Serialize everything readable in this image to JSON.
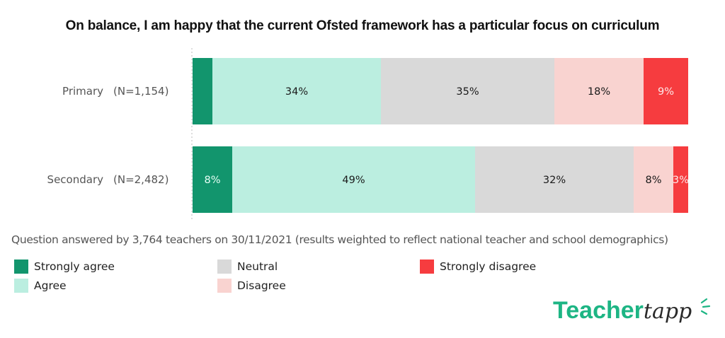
{
  "chart_data": {
    "type": "bar",
    "orientation": "horizontal",
    "stacked": true,
    "title": "On balance, I am happy that the current Ofsted framework has a particular focus on curriculum",
    "categories": [
      "Primary",
      "Secondary"
    ],
    "category_counts": [
      "(N=1,154)",
      "(N=2,482)"
    ],
    "series": [
      {
        "name": "Strongly agree",
        "color": "#12956d",
        "label_color": "#e8fff6",
        "values": [
          4,
          8
        ],
        "labels": [
          "",
          "8%"
        ]
      },
      {
        "name": "Agree",
        "color": "#bbeee0",
        "label_color": "#1a1a1a",
        "values": [
          34,
          49
        ],
        "labels": [
          "34%",
          "49%"
        ]
      },
      {
        "name": "Neutral",
        "color": "#d9d9d9",
        "label_color": "#1a1a1a",
        "values": [
          35,
          32
        ],
        "labels": [
          "35%",
          "32%"
        ]
      },
      {
        "name": "Disagree",
        "color": "#f9d3d0",
        "label_color": "#1a1a1a",
        "values": [
          18,
          8
        ],
        "labels": [
          "18%",
          "8%"
        ]
      },
      {
        "name": "Strongly disagree",
        "color": "#f63c3f",
        "label_color": "#fde9e9",
        "values": [
          9,
          3
        ],
        "labels": [
          "9%",
          "3%"
        ]
      }
    ],
    "xlim": [
      0,
      100
    ],
    "grid": false,
    "legend_position": "bottom-left"
  },
  "footnote": "Question answered by 3,764 teachers on 30/11/2021 (results weighted to reflect national teacher and school demographics)",
  "legend": [
    {
      "label": "Strongly agree",
      "color": "#12956d"
    },
    {
      "label": "Agree",
      "color": "#bbeee0"
    },
    {
      "label": "Neutral",
      "color": "#d9d9d9"
    },
    {
      "label": "Disagree",
      "color": "#f9d3d0"
    },
    {
      "label": "Strongly disagree",
      "color": "#f63c3f"
    }
  ],
  "logo": {
    "part1": "Teacher",
    "part2": "tapp"
  }
}
